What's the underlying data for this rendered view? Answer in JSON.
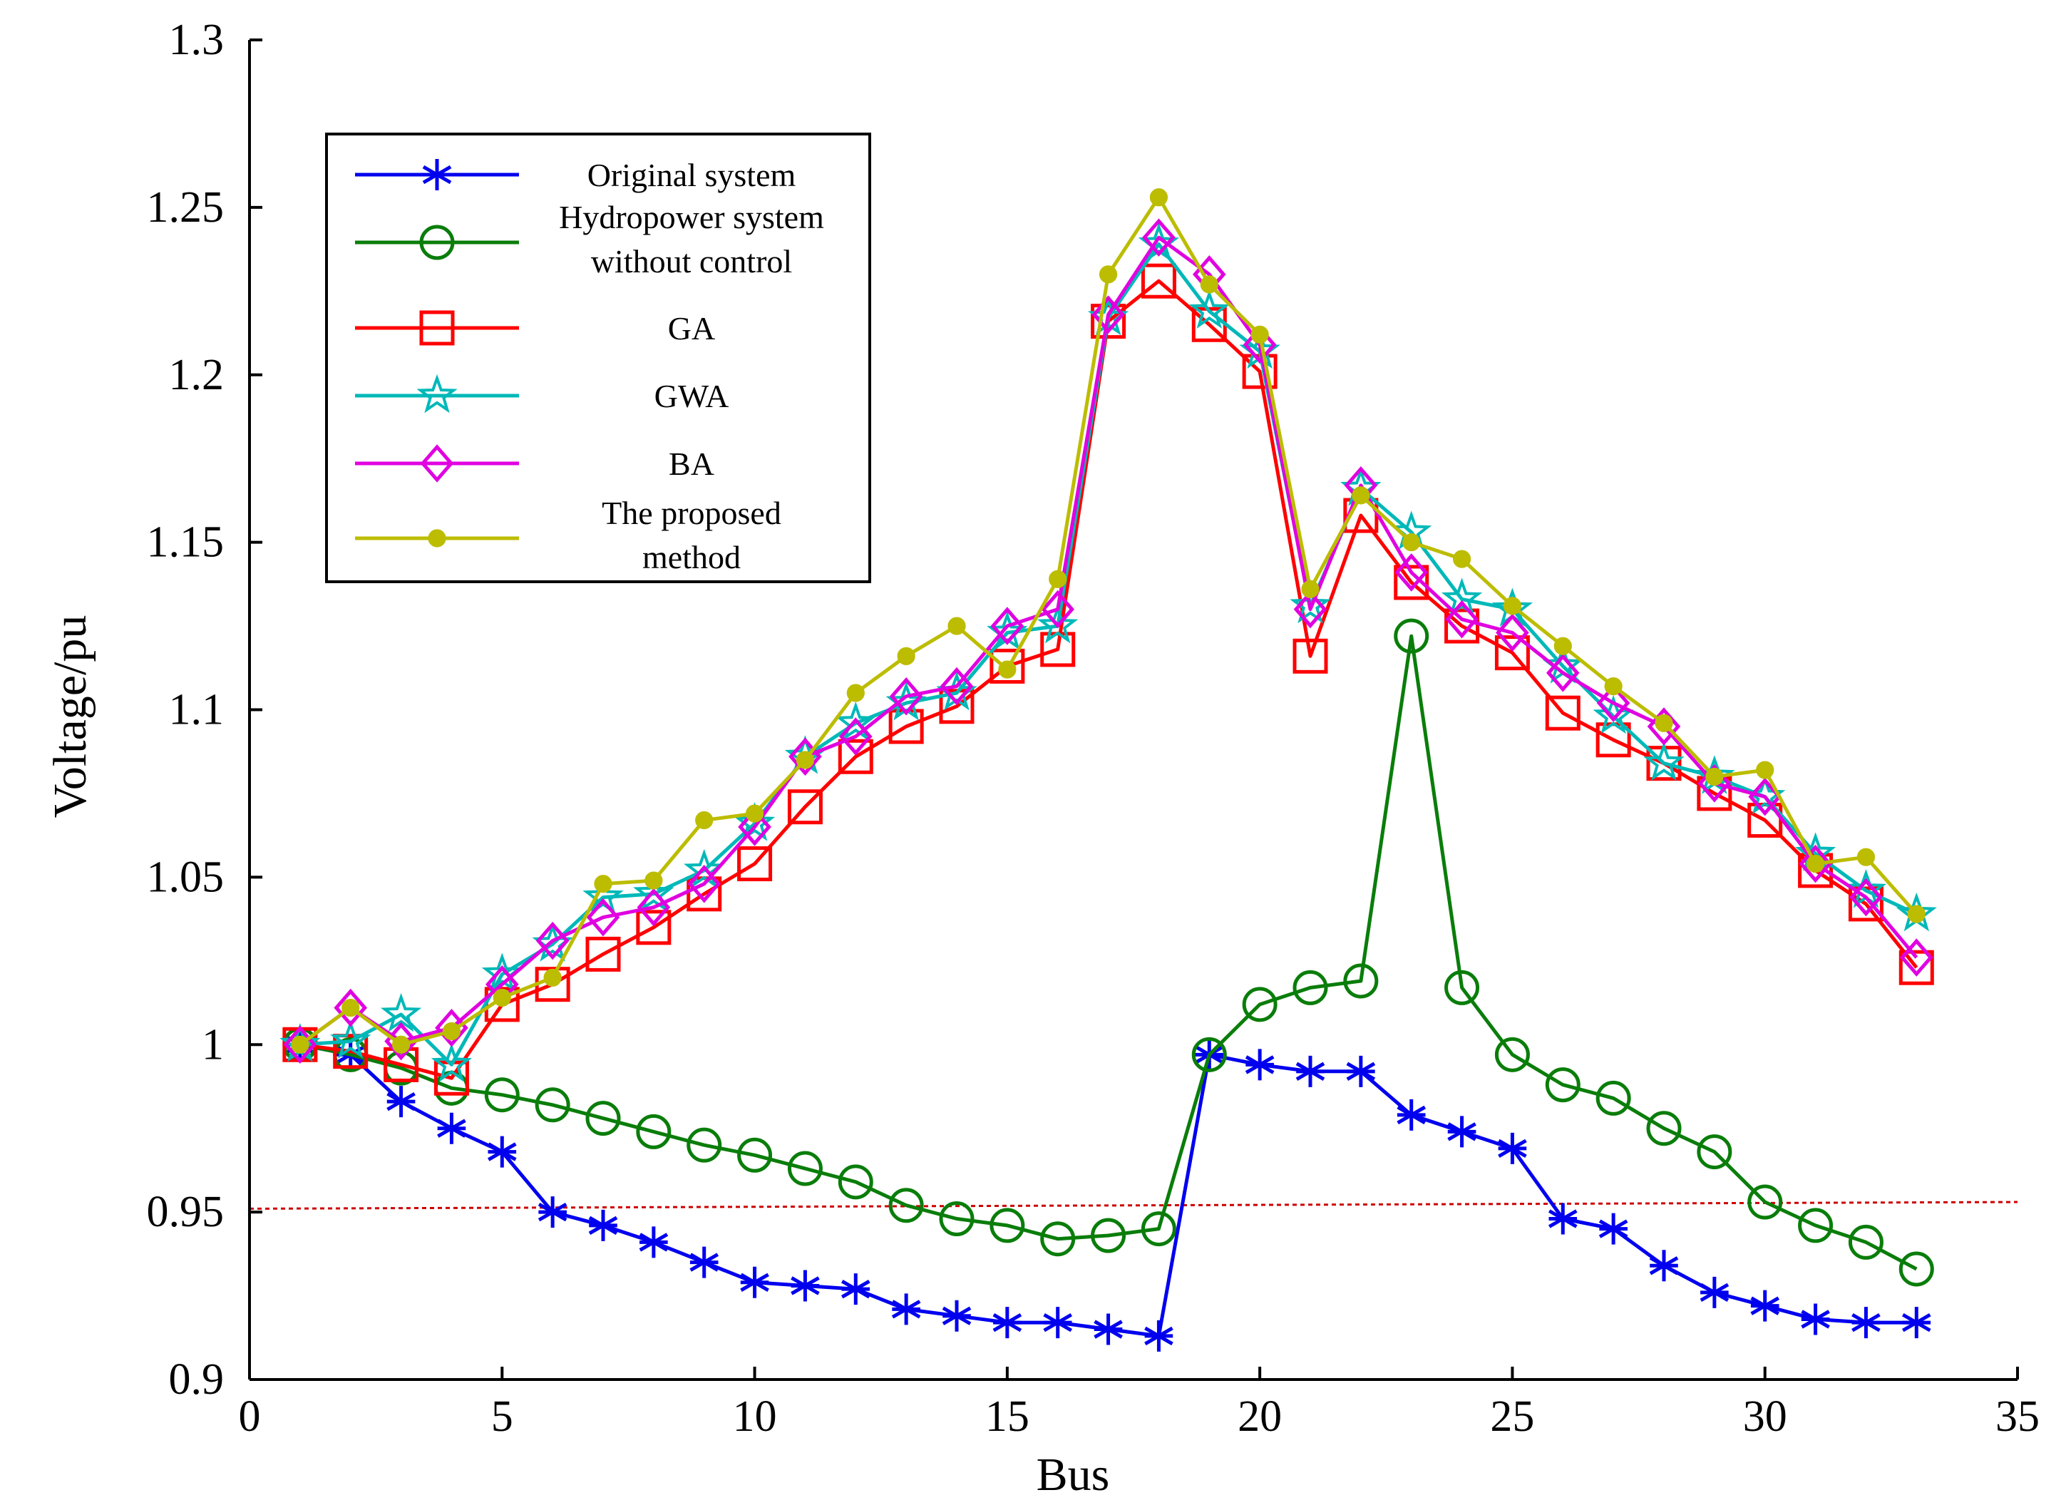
{
  "chart_data": {
    "type": "line",
    "title": "",
    "xlabel": "Bus",
    "ylabel": "Voltage/pu",
    "xlim": [
      0,
      35
    ],
    "ylim": [
      0.9,
      1.3
    ],
    "x_ticks": [
      0,
      5,
      10,
      15,
      20,
      25,
      30,
      35
    ],
    "x_tick_labels": [
      "0",
      "5",
      "10",
      "15",
      "20",
      "25",
      "30",
      "35"
    ],
    "y_ticks": [
      0.9,
      0.95,
      1.0,
      1.05,
      1.1,
      1.15,
      1.2,
      1.25,
      1.3
    ],
    "y_tick_labels": [
      "0.9",
      "0.95",
      "1",
      "1.05",
      "1.1",
      "1.15",
      "1.2",
      "1.25",
      "1.3"
    ],
    "grid": false,
    "legend_position": "top-left",
    "x": [
      1,
      2,
      3,
      4,
      5,
      6,
      7,
      8,
      9,
      10,
      11,
      12,
      13,
      14,
      15,
      16,
      17,
      18,
      19,
      20,
      21,
      22,
      23,
      24,
      25,
      26,
      27,
      28,
      29,
      30,
      31,
      32,
      33
    ],
    "series": [
      {
        "name": "Original system",
        "color": "#0000ee",
        "marker": "asterisk",
        "values": [
          1.0,
          0.997,
          0.983,
          0.975,
          0.968,
          0.95,
          0.946,
          0.941,
          0.935,
          0.929,
          0.928,
          0.927,
          0.921,
          0.919,
          0.917,
          0.917,
          0.915,
          0.913,
          0.997,
          0.994,
          0.992,
          0.992,
          0.979,
          0.974,
          0.969,
          0.948,
          0.945,
          0.934,
          0.926,
          0.922,
          0.918,
          0.917,
          0.917
        ]
      },
      {
        "name_lines": [
          "Hydropower system",
          "without control"
        ],
        "name": "Hydropower system without control",
        "color": "#0a7d0a",
        "marker": "circle",
        "values": [
          1.0,
          0.997,
          0.993,
          0.987,
          0.985,
          0.982,
          0.978,
          0.974,
          0.97,
          0.967,
          0.963,
          0.959,
          0.952,
          0.948,
          0.946,
          0.942,
          0.943,
          0.945,
          0.997,
          1.012,
          1.017,
          1.019,
          1.122,
          1.017,
          0.997,
          0.988,
          0.984,
          0.975,
          0.968,
          0.953,
          0.946,
          0.941,
          0.933
        ]
      },
      {
        "name": "GA",
        "color": "#ff0000",
        "marker": "square",
        "values": [
          1.0,
          0.998,
          0.994,
          0.99,
          1.012,
          1.018,
          1.027,
          1.035,
          1.045,
          1.054,
          1.071,
          1.086,
          1.095,
          1.101,
          1.113,
          1.118,
          1.216,
          1.228,
          1.215,
          1.201,
          1.116,
          1.158,
          1.138,
          1.125,
          1.117,
          1.099,
          1.091,
          1.084,
          1.075,
          1.067,
          1.052,
          1.042,
          1.023
        ]
      },
      {
        "name": "GWA",
        "color": "#00b8b8",
        "marker": "star",
        "values": [
          1.0,
          1.001,
          1.009,
          0.994,
          1.021,
          1.03,
          1.044,
          1.045,
          1.052,
          1.066,
          1.086,
          1.096,
          1.102,
          1.105,
          1.123,
          1.125,
          1.217,
          1.239,
          1.219,
          1.207,
          1.131,
          1.166,
          1.153,
          1.133,
          1.13,
          1.113,
          1.098,
          1.084,
          1.08,
          1.074,
          1.057,
          1.046,
          1.039
        ]
      },
      {
        "name": "BA",
        "color": "#e000e0",
        "marker": "diamond",
        "values": [
          1.0,
          1.011,
          1.001,
          1.005,
          1.018,
          1.031,
          1.038,
          1.041,
          1.048,
          1.065,
          1.086,
          1.092,
          1.104,
          1.107,
          1.125,
          1.13,
          1.218,
          1.241,
          1.23,
          1.209,
          1.13,
          1.167,
          1.141,
          1.127,
          1.123,
          1.111,
          1.102,
          1.095,
          1.078,
          1.074,
          1.054,
          1.044,
          1.026
        ]
      },
      {
        "name_lines": [
          "The proposed",
          "method"
        ],
        "name": "The proposed method",
        "color": "#bcbc00",
        "marker": "dot",
        "values": [
          1.0,
          1.011,
          1.0,
          1.004,
          1.014,
          1.02,
          1.048,
          1.049,
          1.067,
          1.069,
          1.085,
          1.105,
          1.116,
          1.125,
          1.112,
          1.139,
          1.23,
          1.253,
          1.227,
          1.212,
          1.136,
          1.164,
          1.15,
          1.145,
          1.131,
          1.119,
          1.107,
          1.096,
          1.08,
          1.082,
          1.054,
          1.056,
          1.039
        ]
      }
    ],
    "reference_line": {
      "color": "#cc0000",
      "style": "dotted",
      "y_start": 0.951,
      "y_end": 0.953,
      "x_start": 0,
      "x_end": 35
    }
  }
}
